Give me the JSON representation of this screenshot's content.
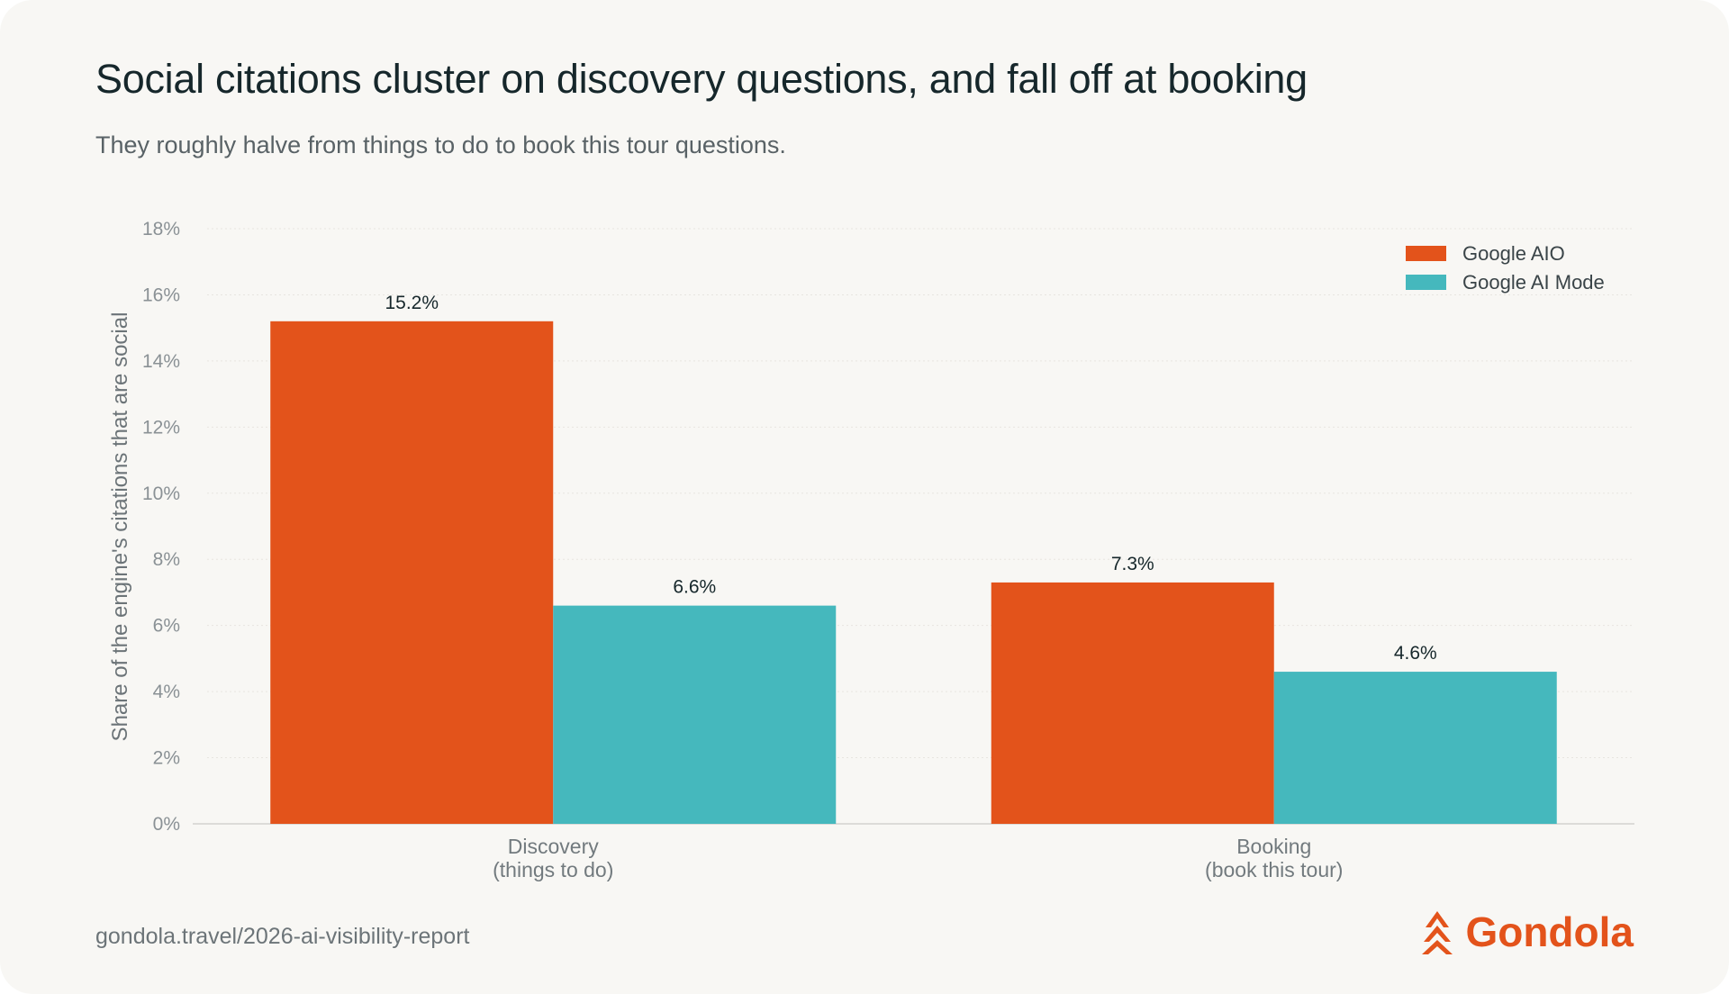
{
  "title": "Social citations cluster on discovery questions, and fall off at booking",
  "subtitle": "They roughly halve from things to do to book this tour questions.",
  "footer": {
    "url": "gondola.travel/2026-ai-visibility-report",
    "brand": "Gondola"
  },
  "colors": {
    "accent": "#e3531b",
    "teal": "#45b8bd"
  },
  "icons": {
    "brand": "gondola-logo-icon"
  },
  "chart_data": {
    "type": "bar",
    "title": "",
    "xlabel": "",
    "ylabel": "Share of the engine's citations that are social",
    "categories": [
      [
        "Discovery",
        "(things to do)"
      ],
      [
        "Booking",
        "(book this tour)"
      ]
    ],
    "series": [
      {
        "name": "Google AIO",
        "color": "#e3531b",
        "values": [
          15.2,
          7.3
        ],
        "labels": [
          "15.2%",
          "7.3%"
        ]
      },
      {
        "name": "Google AI Mode",
        "color": "#45b8bd",
        "values": [
          6.6,
          4.6
        ],
        "labels": [
          "6.6%",
          "4.6%"
        ]
      }
    ],
    "ylim": [
      0,
      18
    ],
    "yticks": [
      "0%",
      "2%",
      "4%",
      "6%",
      "8%",
      "10%",
      "12%",
      "14%",
      "16%",
      "18%"
    ],
    "grid": true,
    "legend": "top-right"
  }
}
